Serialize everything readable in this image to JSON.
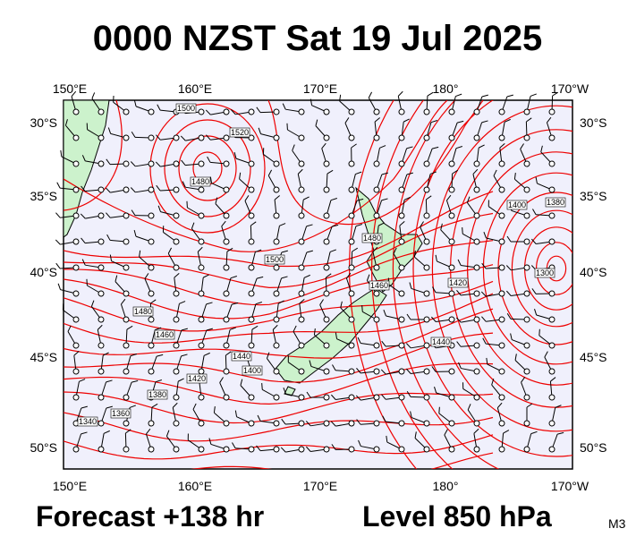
{
  "header": {
    "title": "0000 NZST Sat 19 Jul 2025"
  },
  "map": {
    "top_lon_labels": [
      "150°E",
      "160°E",
      "170°E",
      "180°",
      "170°W"
    ],
    "bottom_lon_labels": [
      "150°E",
      "160°E",
      "170°E",
      "180°",
      "170°W"
    ],
    "left_lat_labels": [
      "30°S",
      "35°S",
      "40°S",
      "45°S",
      "50°S"
    ],
    "right_lat_labels": [
      "30°S",
      "35°S",
      "40°S",
      "45°S",
      "50°S"
    ],
    "contour_labels": [
      "1500",
      "1520",
      "1480",
      "1500",
      "1480",
      "1460",
      "1480",
      "1460",
      "1440",
      "1420",
      "1400",
      "1380",
      "1360",
      "1340",
      "1400",
      "1380",
      "1420",
      "1300",
      "1440"
    ]
  },
  "footer": {
    "forecast": "Forecast +138 hr",
    "level": "Level 850 hPa",
    "model": "M3"
  }
}
